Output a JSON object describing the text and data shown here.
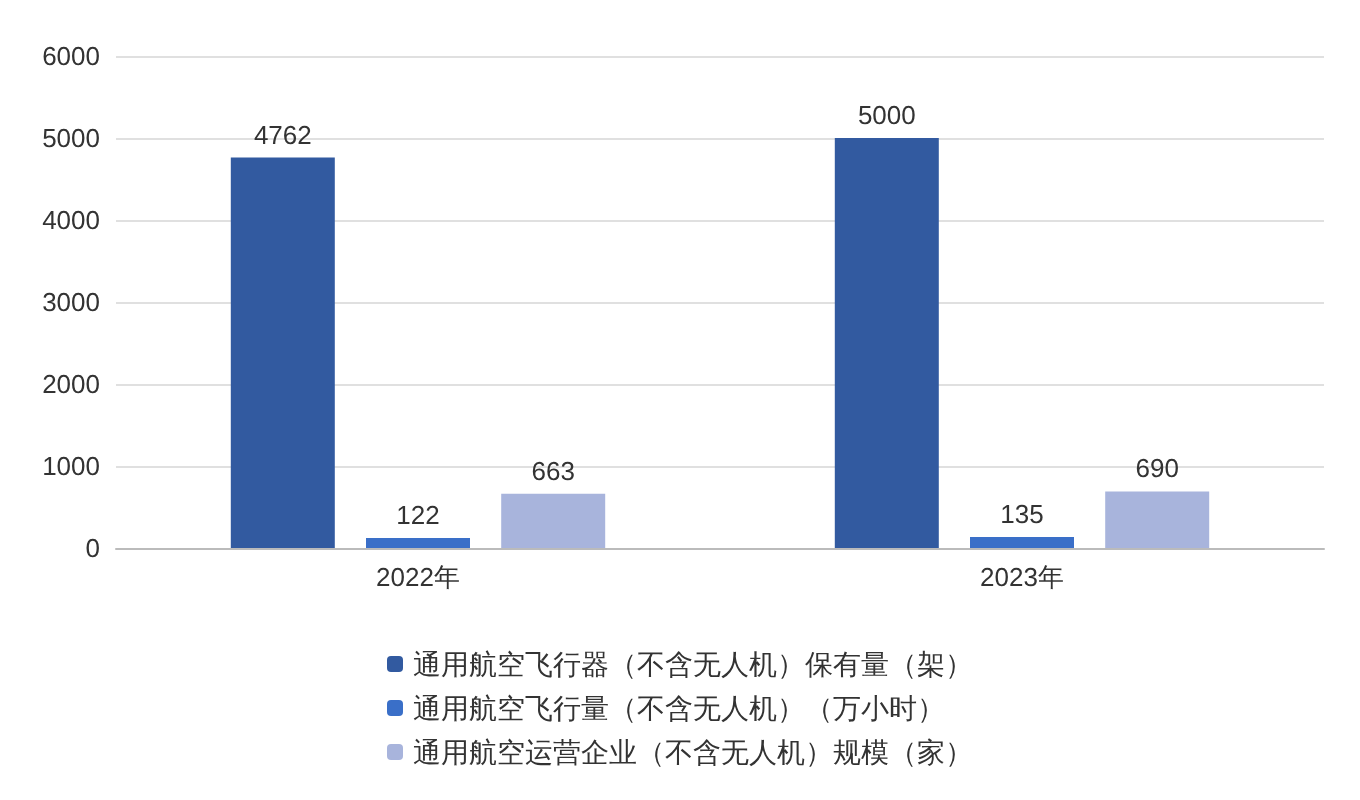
{
  "chart_data": {
    "type": "bar",
    "categories": [
      "2022年",
      "2023年"
    ],
    "series": [
      {
        "name": "通用航空飞行器（不含无人机）保有量（架）",
        "color": "#325aa0",
        "values": [
          4762,
          5000
        ]
      },
      {
        "name": "通用航空飞行量（不含无人机）（万小时）",
        "color": "#3a6fc8",
        "values": [
          122,
          135
        ]
      },
      {
        "name": "通用航空运营企业（不含无人机）规模（家）",
        "color": "#a8b4dc",
        "values": [
          663,
          690
        ]
      }
    ],
    "ylim": [
      0,
      6000
    ],
    "yticks": [
      0,
      1000,
      2000,
      3000,
      4000,
      5000,
      6000
    ],
    "grid": "y",
    "legend": "bottom",
    "data_labels": true
  }
}
